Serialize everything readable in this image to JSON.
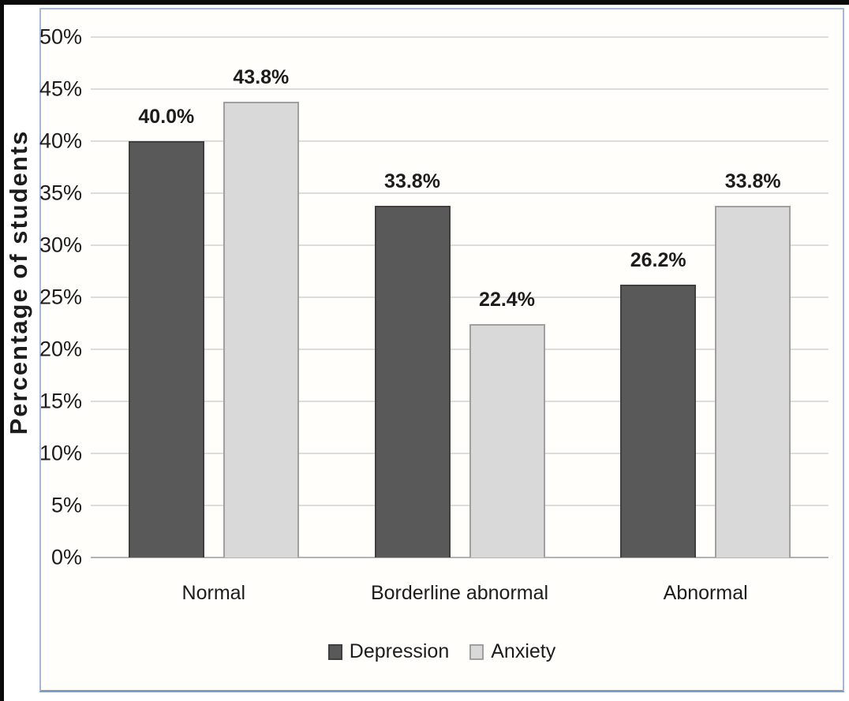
{
  "chart_data": {
    "type": "bar",
    "title": "",
    "ylabel": "Percentage of students",
    "xlabel": "",
    "categories": [
      "Normal",
      "Borderline abnormal",
      "Abnormal"
    ],
    "series": [
      {
        "name": "Depression",
        "values": [
          40.0,
          33.8,
          26.2
        ],
        "labels": [
          "40.0%",
          "33.8%",
          "26.2%"
        ],
        "color": "#595959",
        "border_color": "#3f3f3f"
      },
      {
        "name": "Anxiety",
        "values": [
          43.8,
          22.4,
          33.8
        ],
        "labels": [
          "43.8%",
          "22.4%",
          "33.8%"
        ],
        "color": "#d9d9d9",
        "border_color": "#a0a0a0"
      }
    ],
    "ylim": [
      0,
      50
    ],
    "ytick_step": 5,
    "yticks": [
      "0%",
      "5%",
      "10%",
      "15%",
      "20%",
      "25%",
      "30%",
      "35%",
      "40%",
      "45%",
      "50%"
    ],
    "grid": true,
    "legend_position": "bottom",
    "colors": {
      "depression_fill": "#595959",
      "depression_border": "#3f3f3f",
      "anxiety_fill": "#d9d9d9",
      "anxiety_border": "#a0a0a0",
      "gridline": "#dcdcdc",
      "axis_line": "#b3b3b3",
      "frame_border": "#a3b9d6",
      "frame_border_bottom": "#7d9cc6",
      "outer_border": "#0a0a0a",
      "text": "#1c1c1c"
    }
  }
}
